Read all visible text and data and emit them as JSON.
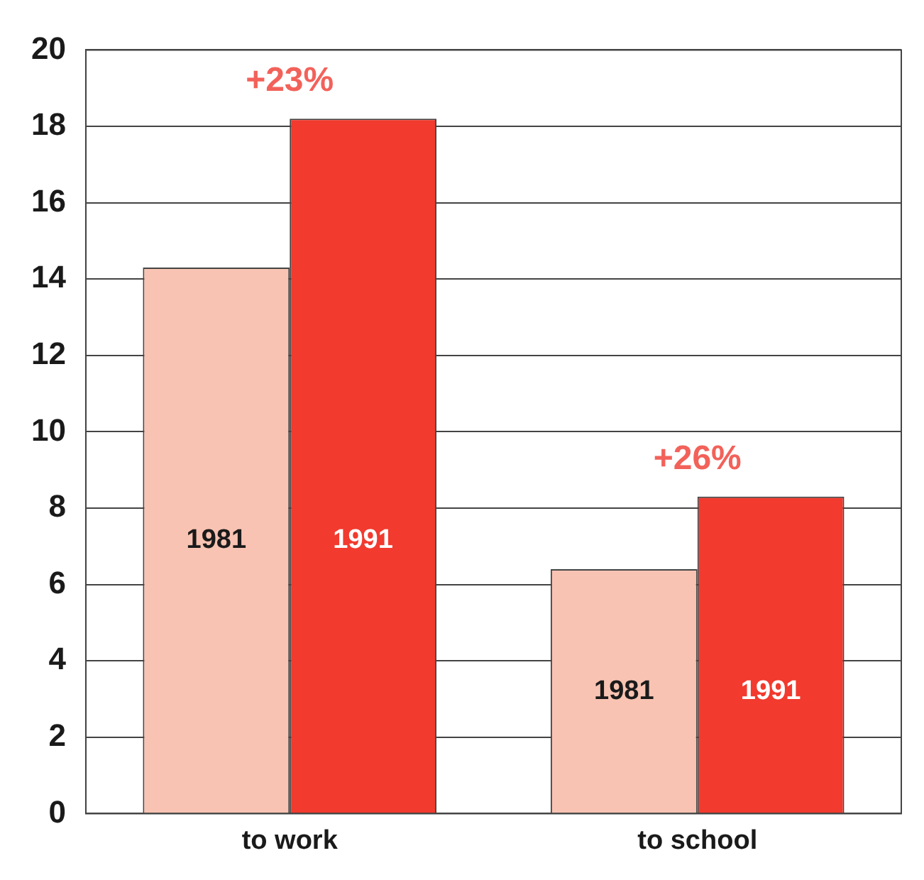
{
  "chart_data": {
    "type": "bar",
    "categories": [
      "to work",
      "to school"
    ],
    "series": [
      {
        "name": "1981",
        "color": "#f8c3b2",
        "values": [
          14.3,
          6.4
        ]
      },
      {
        "name": "1991",
        "color": "#f23a2e",
        "values": [
          18.2,
          8.3
        ]
      }
    ],
    "ylim": [
      0,
      20
    ],
    "yticks": [
      0,
      2,
      4,
      6,
      8,
      10,
      12,
      14,
      16,
      18,
      20
    ],
    "grid": "y",
    "annotations": [
      {
        "text": "+23%",
        "x": "to work",
        "y": 18.2
      },
      {
        "text": "+26%",
        "x": "to school",
        "y": 8.3
      }
    ]
  }
}
